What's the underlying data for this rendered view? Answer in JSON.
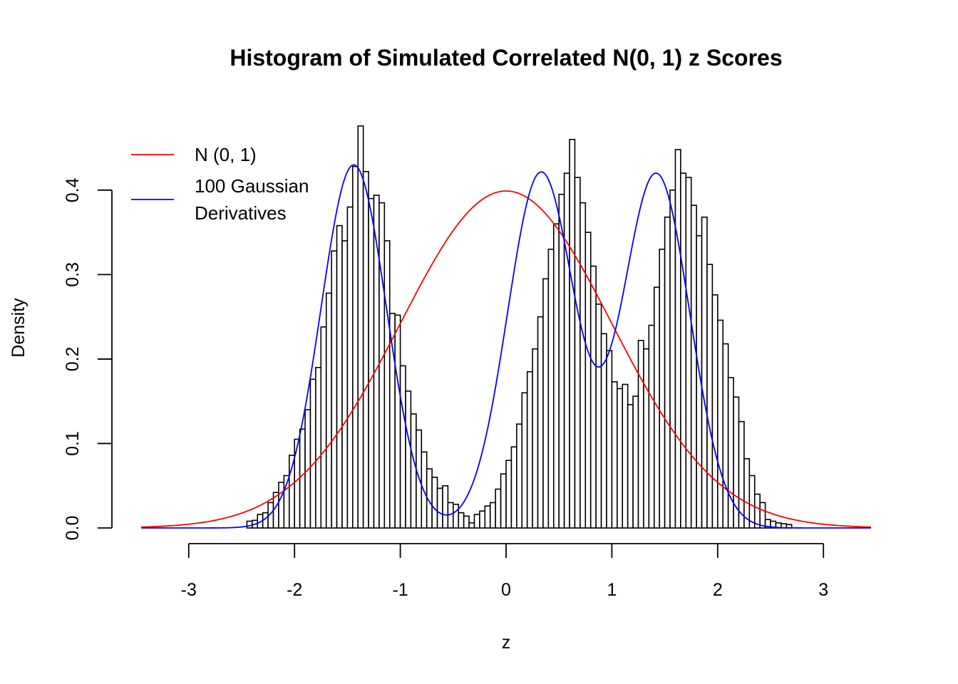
{
  "chart_data": {
    "type": "histogram",
    "title": "Histogram of Simulated Correlated N(0, 1) z Scores",
    "xlabel": "z",
    "ylabel": "Density",
    "xlim": [
      -3.45,
      3.45
    ],
    "ylim": [
      0,
      0.48
    ],
    "x_ticks": [
      -3,
      -2,
      -1,
      0,
      1,
      2,
      3
    ],
    "x_tick_labels": [
      "-3",
      "-2",
      "-1",
      "0",
      "1",
      "2",
      "3"
    ],
    "y_ticks": [
      0.0,
      0.1,
      0.2,
      0.3,
      0.4
    ],
    "y_tick_labels": [
      "0.0",
      "0.1",
      "0.2",
      "0.3",
      "0.4"
    ],
    "grid": false,
    "legend_position": "top-left",
    "histogram": {
      "bin_start": -2.45,
      "bin_width": 0.05,
      "bar_fill": "#ffffff",
      "bar_stroke": "#000000",
      "densities": [
        0.008,
        0.009,
        0.016,
        0.018,
        0.03,
        0.042,
        0.054,
        0.062,
        0.086,
        0.105,
        0.117,
        0.14,
        0.176,
        0.19,
        0.238,
        0.278,
        0.328,
        0.358,
        0.34,
        0.38,
        0.428,
        0.476,
        0.422,
        0.39,
        0.394,
        0.385,
        0.34,
        0.254,
        0.252,
        0.192,
        0.162,
        0.135,
        0.116,
        0.09,
        0.07,
        0.06,
        0.047,
        0.05,
        0.03,
        0.028,
        0.018,
        0.014,
        0.006,
        0.016,
        0.02,
        0.026,
        0.03,
        0.046,
        0.064,
        0.08,
        0.096,
        0.123,
        0.16,
        0.185,
        0.212,
        0.25,
        0.295,
        0.33,
        0.36,
        0.395,
        0.42,
        0.46,
        0.415,
        0.385,
        0.35,
        0.31,
        0.265,
        0.23,
        0.21,
        0.173,
        0.165,
        0.17,
        0.146,
        0.156,
        0.222,
        0.212,
        0.24,
        0.285,
        0.33,
        0.368,
        0.4,
        0.448,
        0.42,
        0.415,
        0.382,
        0.346,
        0.368,
        0.312,
        0.276,
        0.246,
        0.218,
        0.178,
        0.155,
        0.126,
        0.082,
        0.062,
        0.04,
        0.03,
        0.01,
        0.008,
        0.006,
        0.005,
        0.004
      ]
    },
    "series": [
      {
        "name": "N (0, 1)",
        "color": "#ff0000",
        "curve": "standard_normal_density"
      },
      {
        "name": "100 Gaussian\nDerivatives",
        "color": "#0000ff",
        "curve": "mixture_fit",
        "components": [
          {
            "weight": 0.333,
            "mean": -1.44,
            "sd": 0.309
          },
          {
            "weight": 0.333,
            "mean": 0.33,
            "sd": 0.316
          },
          {
            "weight": 0.333,
            "mean": 1.42,
            "sd": 0.317
          }
        ]
      }
    ]
  }
}
